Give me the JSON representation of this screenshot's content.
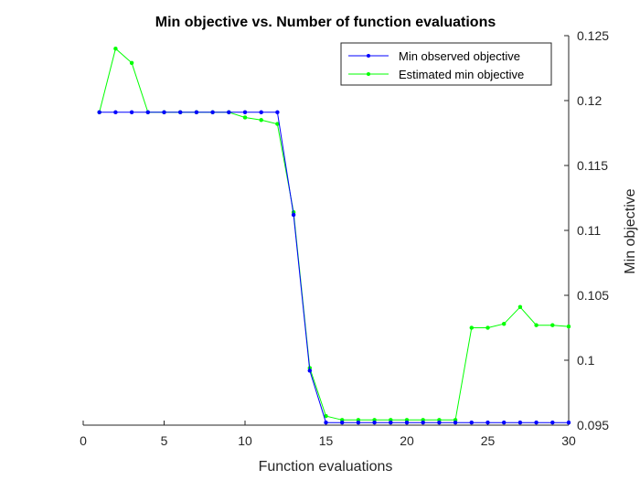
{
  "chart_data": {
    "type": "line",
    "title": "Min objective vs. Number of function evaluations",
    "xlabel": "Function evaluations",
    "ylabel": "Min objective",
    "xlim": [
      0,
      30
    ],
    "ylim": [
      0.095,
      0.125
    ],
    "xticks": [
      0,
      5,
      10,
      15,
      20,
      25,
      30
    ],
    "yticks": [
      0.095,
      0.1,
      0.105,
      0.11,
      0.115,
      0.12,
      0.125
    ],
    "ytick_labels": [
      "0.095",
      "0.1",
      "0.105",
      "0.11",
      "0.115",
      "0.12",
      "0.125"
    ],
    "y_axis_side": "right",
    "grid": false,
    "legend_position": "top-right",
    "x": [
      1,
      2,
      3,
      4,
      5,
      6,
      7,
      8,
      9,
      10,
      11,
      12,
      13,
      14,
      15,
      16,
      17,
      18,
      19,
      20,
      21,
      22,
      23,
      24,
      25,
      26,
      27,
      28,
      29,
      30
    ],
    "series": [
      {
        "name": "Min observed objective",
        "color": "#0000ff",
        "values": [
          0.1191,
          0.1191,
          0.1191,
          0.1191,
          0.1191,
          0.1191,
          0.1191,
          0.1191,
          0.1191,
          0.1191,
          0.1191,
          0.1191,
          0.1112,
          0.0992,
          0.0952,
          0.0952,
          0.0952,
          0.0952,
          0.0952,
          0.0952,
          0.0952,
          0.0952,
          0.0952,
          0.0952,
          0.0952,
          0.0952,
          0.0952,
          0.0952,
          0.0952,
          0.0952
        ]
      },
      {
        "name": "Estimated min objective",
        "color": "#00ff00",
        "values": [
          0.1191,
          0.124,
          0.1229,
          0.1191,
          0.1191,
          0.1191,
          0.1191,
          0.1191,
          0.1191,
          0.1187,
          0.1185,
          0.1182,
          0.1114,
          0.0994,
          0.0957,
          0.0954,
          0.0954,
          0.0954,
          0.0954,
          0.0954,
          0.0954,
          0.0954,
          0.0954,
          0.1025,
          0.1025,
          0.1028,
          0.1041,
          0.1027,
          0.1027,
          0.1026
        ]
      }
    ]
  }
}
